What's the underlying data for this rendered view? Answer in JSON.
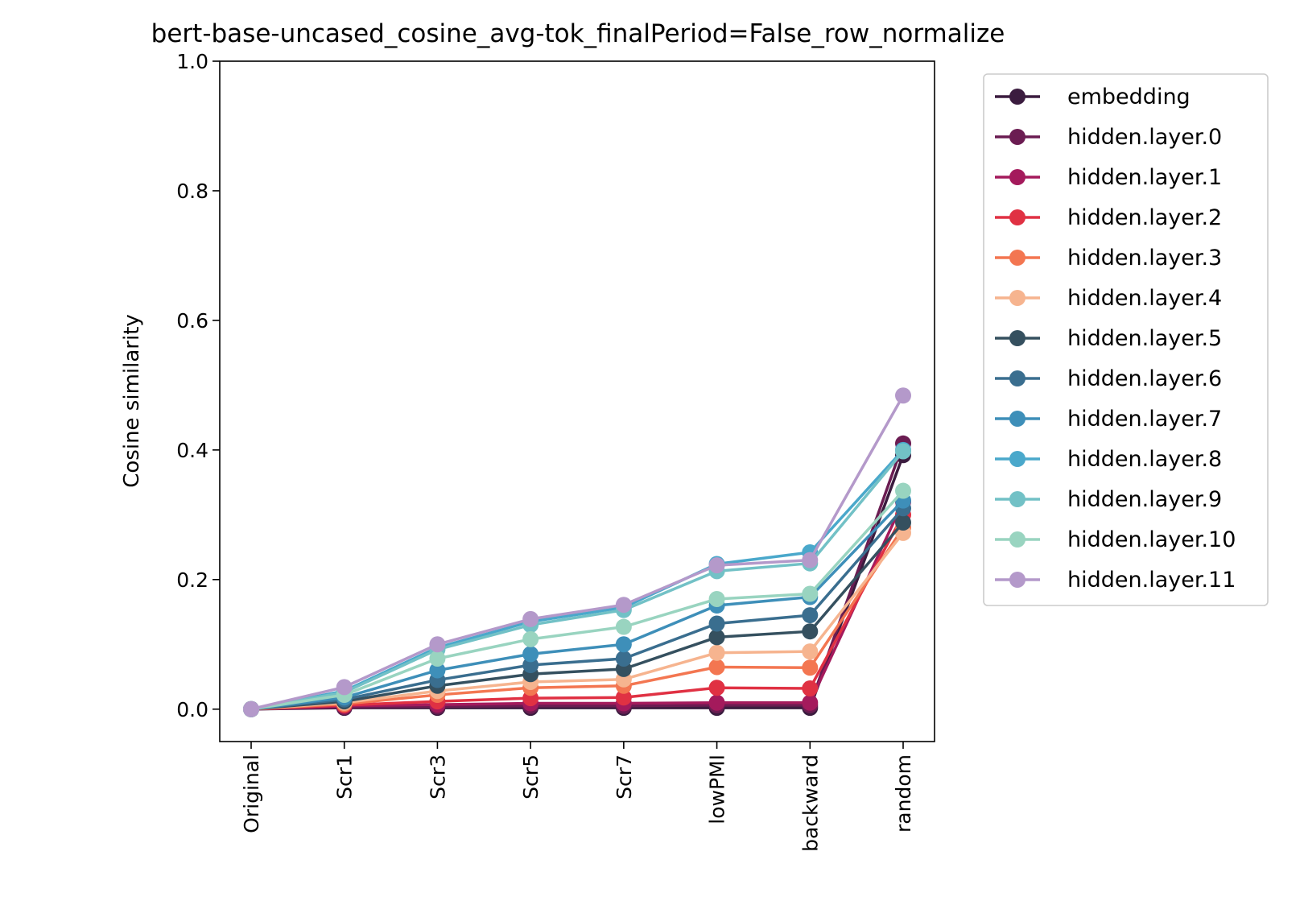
{
  "chart_data": {
    "type": "line",
    "title": "bert-base-uncased_cosine_avg-tok_finalPeriod=False_row_normalize",
    "xlabel": "",
    "ylabel": "Cosine similarity",
    "categories": [
      "Original",
      "Scr1",
      "Scr3",
      "Scr5",
      "Scr7",
      "lowPMI",
      "backward",
      "random"
    ],
    "ylim": [
      -0.05,
      1.0
    ],
    "yticks": [
      "0.0",
      "0.2",
      "0.4",
      "0.6",
      "0.8",
      "1.0"
    ],
    "grid": false,
    "legend_placement": "outside-right",
    "series": [
      {
        "name": "embedding",
        "color": "#3b1c3f",
        "values": [
          0,
          0.002,
          0.002,
          0.002,
          0.002,
          0.002,
          0.002,
          0.392
        ]
      },
      {
        "name": "hidden.layer.0",
        "color": "#6b1c52",
        "values": [
          0,
          0.003,
          0.004,
          0.005,
          0.005,
          0.006,
          0.006,
          0.41
        ]
      },
      {
        "name": "hidden.layer.1",
        "color": "#a41a5c",
        "values": [
          0,
          0.005,
          0.007,
          0.009,
          0.009,
          0.01,
          0.01,
          0.32
        ]
      },
      {
        "name": "hidden.layer.2",
        "color": "#e03143",
        "values": [
          0,
          0.006,
          0.012,
          0.017,
          0.018,
          0.033,
          0.032,
          0.3
        ]
      },
      {
        "name": "hidden.layer.3",
        "color": "#f37651",
        "values": [
          0,
          0.008,
          0.022,
          0.033,
          0.036,
          0.065,
          0.064,
          0.28
        ]
      },
      {
        "name": "hidden.layer.4",
        "color": "#f6b48f",
        "values": [
          0,
          0.01,
          0.028,
          0.042,
          0.046,
          0.087,
          0.089,
          0.272
        ]
      },
      {
        "name": "hidden.layer.5",
        "color": "#35505f",
        "values": [
          0,
          0.012,
          0.036,
          0.054,
          0.062,
          0.111,
          0.12,
          0.288
        ]
      },
      {
        "name": "hidden.layer.6",
        "color": "#3a6e8f",
        "values": [
          0,
          0.015,
          0.045,
          0.068,
          0.078,
          0.132,
          0.145,
          0.31
        ]
      },
      {
        "name": "hidden.layer.7",
        "color": "#3e8fb9",
        "values": [
          0,
          0.018,
          0.06,
          0.085,
          0.1,
          0.16,
          0.173,
          0.322
        ]
      },
      {
        "name": "hidden.layer.8",
        "color": "#4aa8cb",
        "values": [
          0,
          0.028,
          0.095,
          0.135,
          0.157,
          0.224,
          0.242,
          0.4
        ]
      },
      {
        "name": "hidden.layer.9",
        "color": "#72c1c6",
        "values": [
          0,
          0.026,
          0.092,
          0.13,
          0.153,
          0.213,
          0.225,
          0.398
        ]
      },
      {
        "name": "hidden.layer.10",
        "color": "#99d4c0",
        "values": [
          0,
          0.022,
          0.078,
          0.108,
          0.127,
          0.17,
          0.178,
          0.337
        ]
      },
      {
        "name": "hidden.layer.11",
        "color": "#b499ca",
        "values": [
          0,
          0.034,
          0.1,
          0.139,
          0.161,
          0.222,
          0.23,
          0.484
        ]
      }
    ]
  }
}
